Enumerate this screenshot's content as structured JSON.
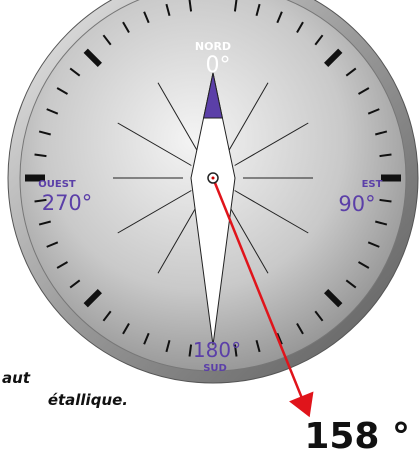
{
  "caption": [
    "aut",
    "étallique."
  ],
  "compass": {
    "north": {
      "name": "NORD",
      "degrees": "0°"
    },
    "east": {
      "name": "EST",
      "degrees": "90°"
    },
    "south": {
      "name": "SUD",
      "degrees": "180°"
    },
    "west": {
      "name": "OUEST",
      "degrees": "270°"
    }
  },
  "heading": {
    "value": 158,
    "label": "158 °"
  }
}
